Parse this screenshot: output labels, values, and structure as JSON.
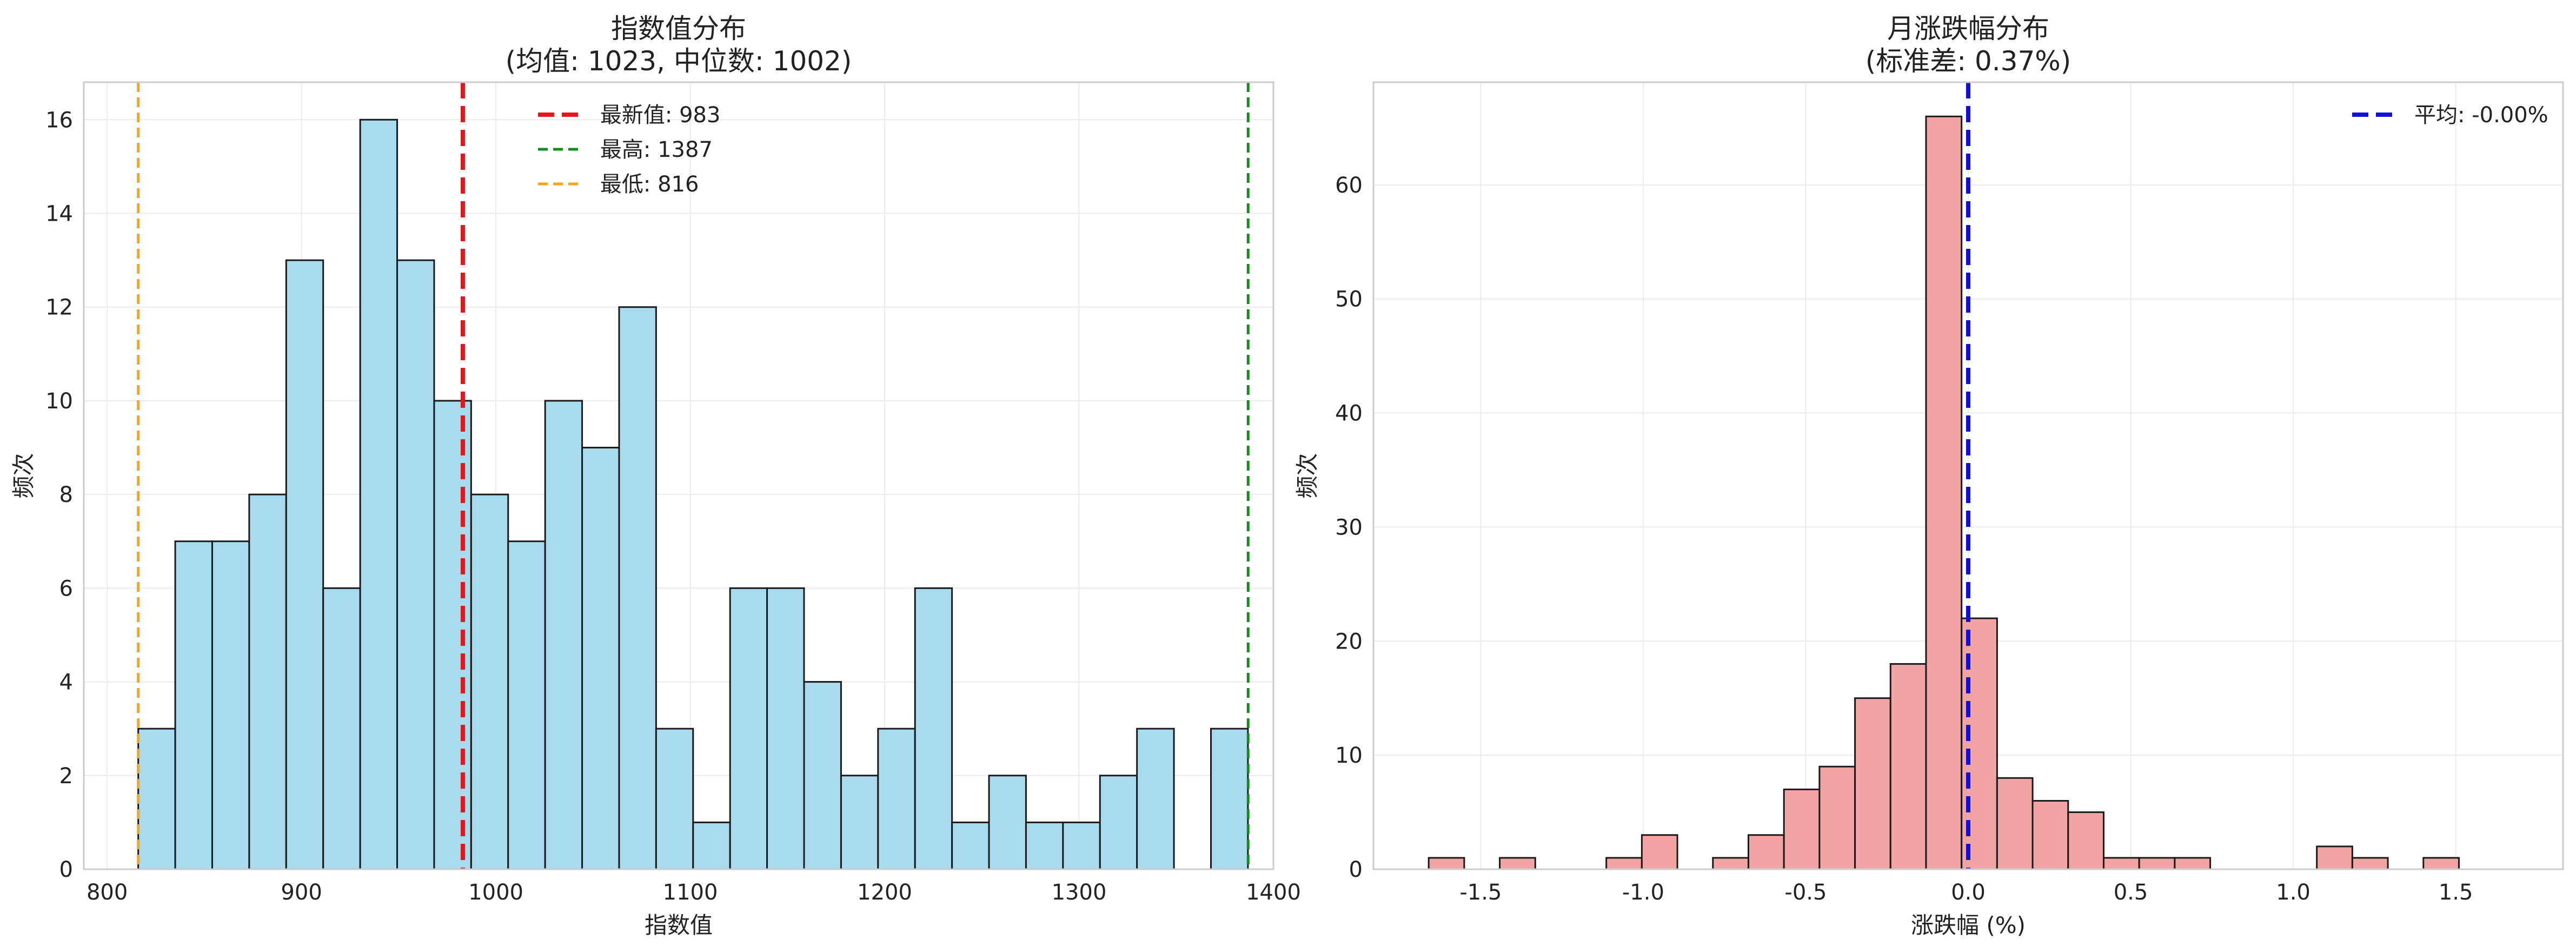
{
  "chart_data": [
    {
      "type": "bar",
      "title": "指数值分布",
      "subtitle": "(均值: 1023, 中位数: 1002)",
      "xlabel": "指数值",
      "ylabel": "频次",
      "xlim": [
        788,
        1400
      ],
      "ylim": [
        0,
        16.8
      ],
      "xticks": [
        800,
        900,
        1000,
        1100,
        1200,
        1300,
        1400
      ],
      "yticks": [
        0,
        2,
        4,
        6,
        8,
        10,
        12,
        14,
        16
      ],
      "grid": true,
      "bin_width": 19.03,
      "bin_start": 816,
      "values": [
        3,
        7,
        7,
        8,
        13,
        6,
        16,
        13,
        10,
        8,
        7,
        10,
        9,
        12,
        3,
        1,
        6,
        6,
        4,
        2,
        3,
        6,
        1,
        2,
        1,
        1,
        2,
        3,
        0,
        3
      ],
      "bar_color": "#a9dbef",
      "lines": [
        {
          "label": "最新值: 983",
          "x": 983,
          "color": "#e8141b",
          "style": "dashed",
          "width": "thick"
        },
        {
          "label": "最高: 1387",
          "x": 1387,
          "color": "#168a1e",
          "style": "dashed",
          "width": "normal"
        },
        {
          "label": "最低: 816",
          "x": 816,
          "color": "#ffa21a",
          "style": "dashed",
          "width": "normal"
        }
      ],
      "legend": "top-center"
    },
    {
      "type": "bar",
      "title": "月涨跌幅分布",
      "subtitle": "(标准差: 0.37%)",
      "xlabel": "涨跌幅 (%)",
      "ylabel": "频次",
      "xlim": [
        -1.83,
        1.83
      ],
      "ylim": [
        0,
        69
      ],
      "xticks": [
        -1.5,
        -1.0,
        -0.5,
        0.0,
        0.5,
        1.0,
        1.5
      ],
      "xtick_labels": [
        "-1.5",
        "-1.0",
        "-0.5",
        "0.0",
        "0.5",
        "1.0",
        "1.5"
      ],
      "yticks": [
        0,
        10,
        20,
        30,
        40,
        50,
        60
      ],
      "grid": true,
      "bin_width": 0.1093,
      "bin_start": -1.66,
      "values": [
        1,
        0,
        1,
        0,
        0,
        1,
        3,
        0,
        1,
        3,
        7,
        9,
        15,
        18,
        66,
        22,
        8,
        6,
        5,
        1,
        1,
        1,
        0,
        0,
        0,
        2,
        1,
        0,
        1
      ],
      "bar_color": "#f2a3a4",
      "lines": [
        {
          "label": "平均: -0.00%",
          "x": 0.0,
          "color": "#1010d8",
          "style": "dashed",
          "width": "thick"
        }
      ],
      "legend": "top-right"
    }
  ]
}
